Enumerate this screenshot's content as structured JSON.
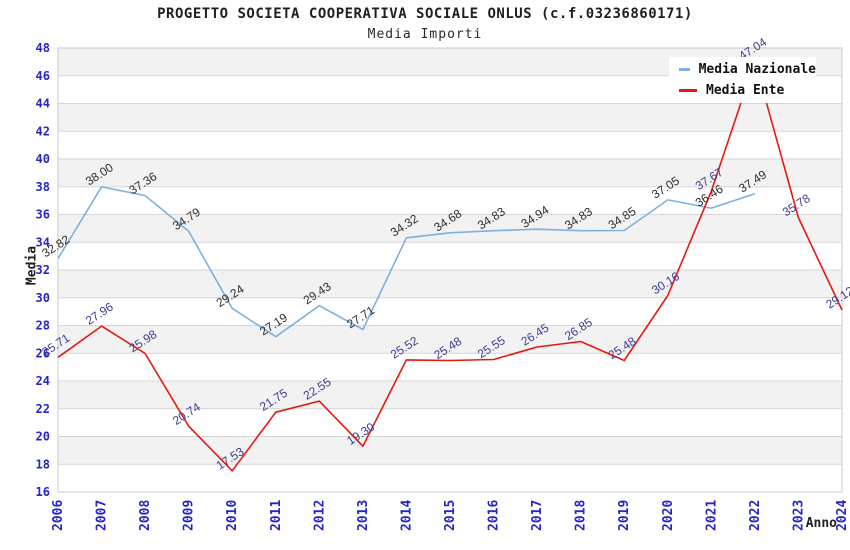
{
  "header": {
    "title": "PROGETTO SOCIETA COOPERATIVA SOCIALE ONLUS (c.f.03236860171)",
    "subtitle": "Media Importi"
  },
  "axes": {
    "y_title": "Media",
    "x_title": "Anno"
  },
  "legend": {
    "items": [
      {
        "label": "Media Nazionale",
        "color": "#7db1e0"
      },
      {
        "label": "Media Ente",
        "color": "#e6190e"
      }
    ]
  },
  "chart_data": {
    "type": "line",
    "title": "PROGETTO SOCIETA COOPERATIVA SOCIALE ONLUS (c.f.03236860171)",
    "subtitle": "Media Importi",
    "xlabel": "Anno",
    "ylabel": "Media",
    "x": [
      2006,
      2007,
      2008,
      2009,
      2010,
      2011,
      2012,
      2013,
      2014,
      2015,
      2016,
      2017,
      2018,
      2019,
      2020,
      2021,
      2022,
      2023,
      2024
    ],
    "series": [
      {
        "name": "Media Nazionale",
        "color": "#7db1e0",
        "label_color": "#2e2e2e",
        "values": [
          32.82,
          38.0,
          37.36,
          34.79,
          29.24,
          27.19,
          29.43,
          27.71,
          34.32,
          34.68,
          34.83,
          34.94,
          34.83,
          34.85,
          37.05,
          36.46,
          37.49,
          null,
          null
        ]
      },
      {
        "name": "Media Ente",
        "color": "#e6190e",
        "label_color": "#3d3d8f",
        "values": [
          25.71,
          27.96,
          25.98,
          20.74,
          17.53,
          21.75,
          22.55,
          19.3,
          25.52,
          25.48,
          25.55,
          26.45,
          26.85,
          25.48,
          30.16,
          37.67,
          47.04,
          35.78,
          29.12
        ]
      }
    ],
    "ylim": [
      16,
      48
    ],
    "ytick_step": 2,
    "grid": true,
    "band_fill": "#f2f2f2",
    "grid_color": "#d6d6d6",
    "border_color": "#c8c8c8",
    "tick_color": "#2525cc",
    "legend_position": "top-right"
  }
}
